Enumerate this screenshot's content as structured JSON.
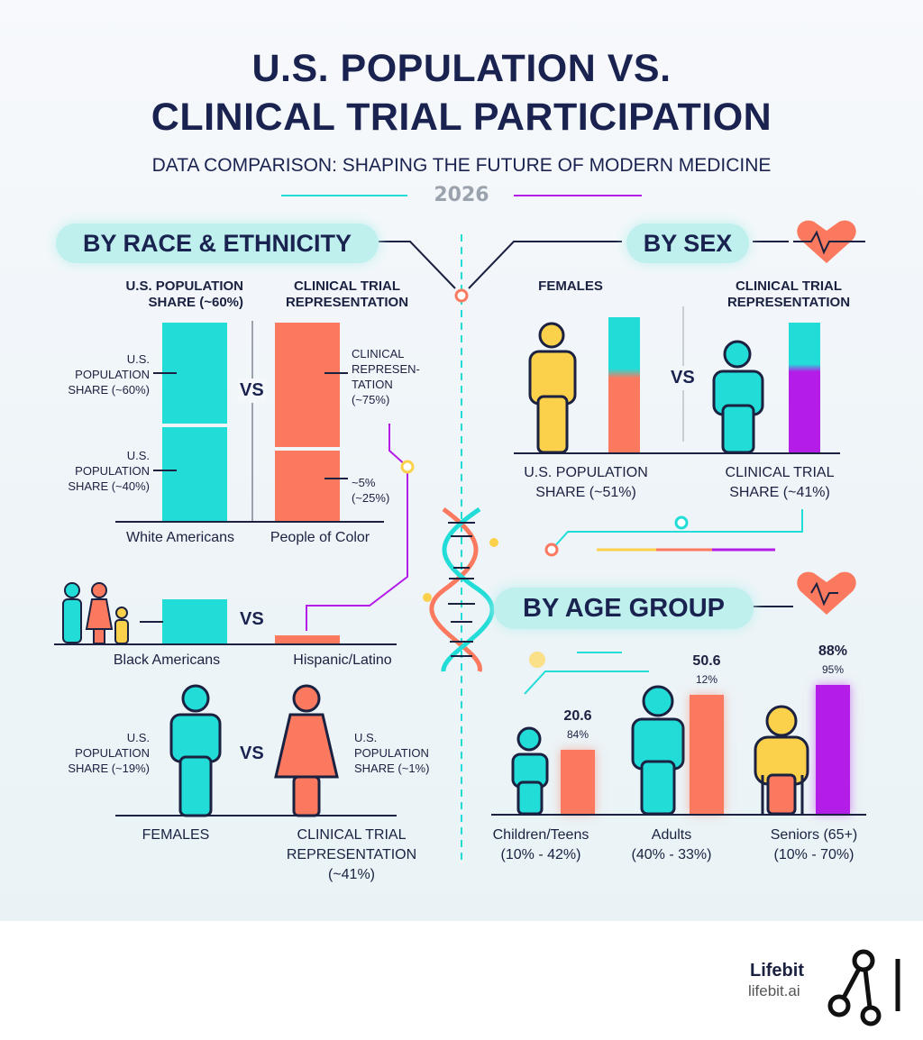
{
  "header": {
    "title_line1": "U.S. POPULATION VS.",
    "title_line2": "CLINICAL TRIAL PARTICIPATION",
    "subtitle": "DATA COMPARISON: SHAPING THE FUTURE OF MODERN MEDICINE",
    "year": "2026"
  },
  "race": {
    "heading": "BY RACE & ETHNICITY",
    "col_left": "U.S. POPULATION SHARE (~60%)",
    "col_right": "CLINICAL TRIAL REPRESENTATION",
    "left_top": "U.S. POPULATION SHARE (~60%)",
    "left_bottom": "U.S. POPULATION SHARE (~40%)",
    "right_top": "CLINICAL REPRESEN- TATION (~75%)",
    "right_bottom": "~5% (~25%)",
    "vs": "VS",
    "cat_left": "White Americans",
    "cat_right": "People of Color",
    "cat2_left": "Black Americans",
    "cat2_right": "Hispanic/Latino",
    "fig_left": "U.S. POPULATION SHARE (~19%)",
    "fig_right": "U.S. POPULATION SHARE (~1%)",
    "cat3_left": "FEMALES",
    "cat3_right": "CLINICAL TRIAL REPRESENTATION (~41%)"
  },
  "sex": {
    "heading": "BY SEX",
    "col_left": "FEMALES",
    "col_right": "CLINICAL TRIAL REPRESENTATION",
    "vs": "VS",
    "cat_left": "U.S. POPULATION SHARE (~51%)",
    "cat_right": "CLINICAL TRIAL SHARE (~41%)"
  },
  "age": {
    "heading": "BY AGE GROUP"
  },
  "colors": {
    "teal": "#22dcd8",
    "coral": "#fb7a5f",
    "purple": "#b41ce8",
    "yellow": "#fbd04a",
    "navy": "#1a2350"
  },
  "chart_data": {
    "type": "bar",
    "title": "BY AGE GROUP",
    "categories": [
      "Children/Teens (10% - 42%)",
      "Adults (40% - 33%)",
      "Seniors (65+) (10% - 70%)"
    ],
    "value_labels": [
      "20.6",
      "50.6",
      "88%"
    ],
    "sub_labels": [
      "84%",
      "12%",
      "95%"
    ]
  },
  "footer": {
    "brand": "Lifebit",
    "url": "lifebit.ai"
  }
}
